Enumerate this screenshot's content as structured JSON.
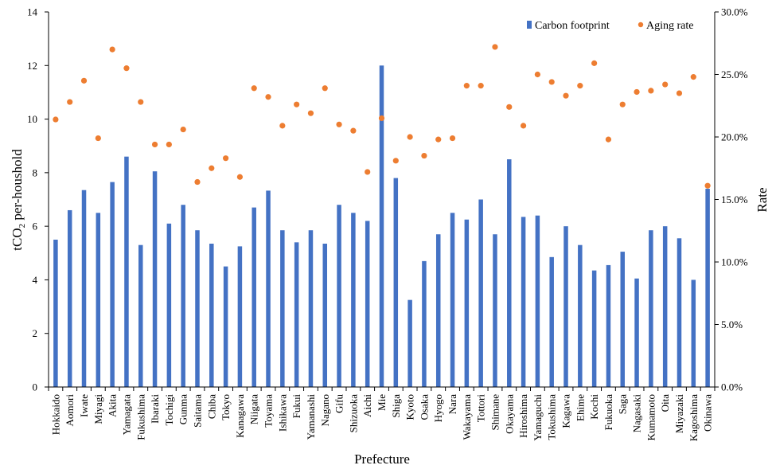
{
  "chart_data": {
    "type": "bar",
    "title": "",
    "xlabel": "Prefecture",
    "ylabel_left": "tCO2 per-houshold",
    "ylabel_left_main": "tCO",
    "ylabel_left_sub": "2",
    "ylabel_left_rest": " per-houshold",
    "ylabel_right": "Rate",
    "ylim_left": [
      0,
      14
    ],
    "yticks_left": [
      0,
      2,
      4,
      6,
      8,
      10,
      12,
      14
    ],
    "ylim_right": [
      0,
      30
    ],
    "yticks_right": [
      0,
      5,
      10,
      15,
      20,
      25,
      30
    ],
    "ytick_labels_right": [
      "0.0%",
      "5.0%",
      "10.0%",
      "15.0%",
      "20.0%",
      "25.0%",
      "30.0%"
    ],
    "grid": false,
    "legend_position": "top-right",
    "categories": [
      "Hokkaido",
      "Aomori",
      "Iwate",
      "Miyagi",
      "Akita",
      "Yamagata",
      "Fukushima",
      "Ibaraki",
      "Tochigi",
      "Gunma",
      "Saitama",
      "Chiba",
      "Tokyo",
      "Kanagawa",
      "Niigata",
      "Toyama",
      "Ishikawa",
      "Fukui",
      "Yamanashi",
      "Nagano",
      "Gifu",
      "Shizuoka",
      "Aichi",
      "Mie",
      "Shiga",
      "Kyoto",
      "Osaka",
      "Hyogo",
      "Nara",
      "Wakayama",
      "Tottori",
      "Shimane",
      "Okayama",
      "Hiroshima",
      "Yamaguchi",
      "Tokushima",
      "Kagawa",
      "Ehime",
      "Kochi",
      "Fukuoka",
      "Saga",
      "Nagasaki",
      "Kumamoto",
      "Oita",
      "Miyazaki",
      "Kagoshima",
      "Okinawa"
    ],
    "series": [
      {
        "name": "Carbon footprint",
        "kind": "bar",
        "axis": "left",
        "color": "#4472c4",
        "values": [
          5.5,
          6.6,
          7.35,
          6.5,
          7.65,
          8.6,
          5.3,
          8.05,
          6.1,
          6.8,
          5.85,
          5.35,
          4.5,
          5.25,
          6.7,
          7.33,
          5.85,
          5.4,
          5.85,
          5.35,
          6.8,
          6.5,
          6.2,
          12.0,
          7.8,
          3.25,
          4.7,
          5.7,
          6.5,
          6.25,
          7.0,
          5.7,
          8.5,
          6.35,
          6.4,
          4.85,
          6.0,
          5.3,
          4.35,
          4.55,
          5.05,
          4.05,
          5.85,
          6.0,
          5.55,
          4.0,
          7.4
        ]
      },
      {
        "name": "Aging rate",
        "kind": "scatter",
        "axis": "right",
        "color": "#ed7d31",
        "values": [
          21.4,
          22.8,
          24.5,
          19.9,
          27.0,
          25.5,
          22.8,
          19.4,
          19.4,
          20.6,
          16.4,
          17.5,
          18.3,
          16.8,
          23.9,
          23.2,
          20.9,
          22.6,
          21.9,
          23.9,
          21.0,
          20.5,
          17.2,
          21.5,
          18.1,
          20.0,
          18.5,
          19.8,
          19.9,
          24.1,
          24.1,
          27.2,
          22.4,
          20.9,
          25.0,
          24.4,
          23.3,
          24.1,
          25.9,
          19.8,
          22.6,
          23.6,
          23.7,
          24.2,
          23.5,
          24.8,
          16.1
        ]
      }
    ]
  }
}
